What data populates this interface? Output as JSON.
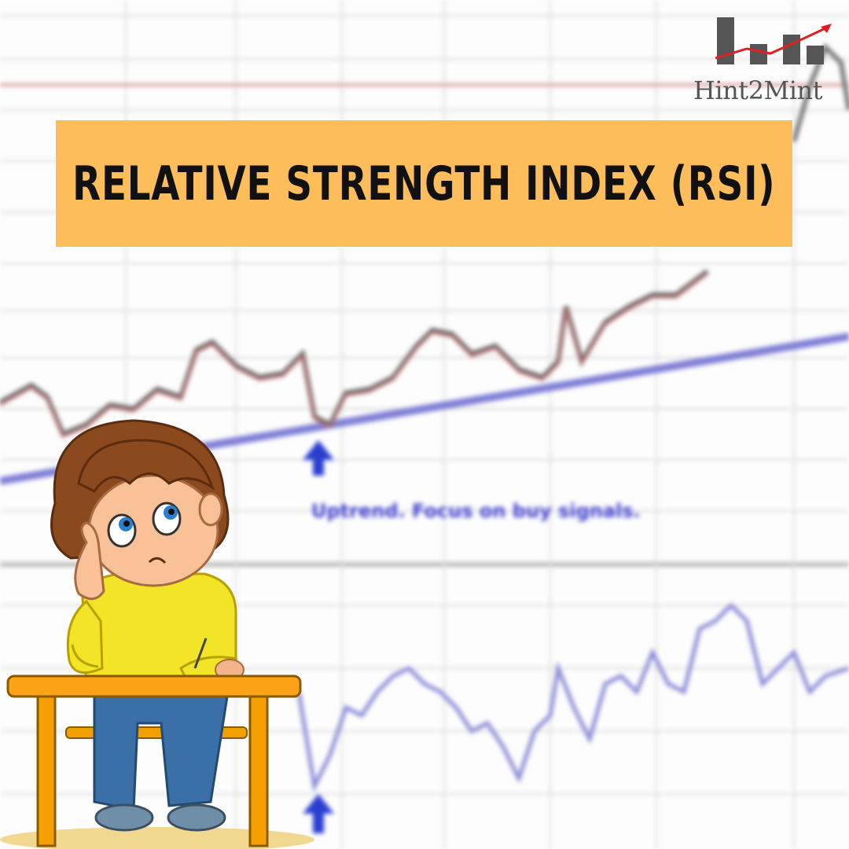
{
  "title": "RELATIVE STRENGTH INDEX (RSI)",
  "logo": {
    "text": "Hint2Mint",
    "icon": "bar-chart-trend-icon"
  },
  "chart": {
    "annotation": "Uptrend. Focus on buy signals."
  },
  "illustration": "thinking-child-at-desk",
  "colors": {
    "banner": "#fcbd5a",
    "title_text": "#111111",
    "trendline": "#7f7fd6",
    "arrow": "#2a3fd0",
    "logo_bars": "#555555",
    "logo_arrow": "#e02020"
  }
}
